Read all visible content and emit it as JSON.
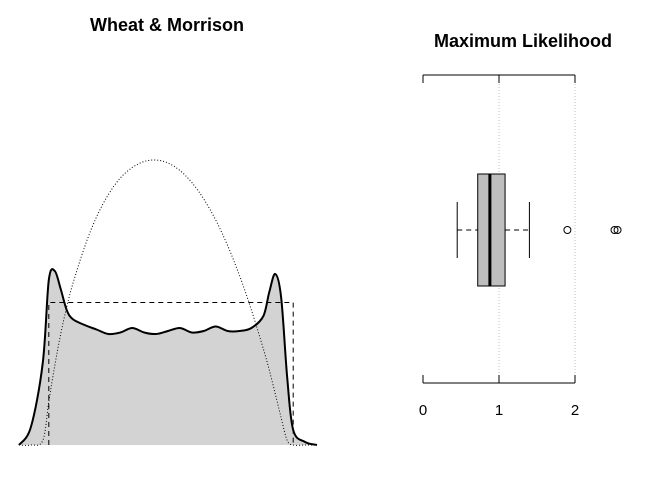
{
  "chart_data": [
    {
      "type": "area",
      "title": "Wheat & Morrison",
      "xlabel": "",
      "ylabel": "",
      "axes_shown": false,
      "fill_color": "#d3d3d3",
      "x": [
        0.0,
        0.04,
        0.08,
        0.1,
        0.12,
        0.14,
        0.16,
        0.18,
        0.22,
        0.26,
        0.3,
        0.34,
        0.38,
        0.42,
        0.46,
        0.5,
        0.54,
        0.58,
        0.62,
        0.66,
        0.7,
        0.74,
        0.78,
        0.82,
        0.84,
        0.86,
        0.88,
        0.9,
        0.92,
        0.96,
        1.0
      ],
      "series": [
        {
          "type": "area",
          "line_style": "solid",
          "values": [
            0.0,
            0.12,
            0.55,
            1.1,
            1.16,
            1.04,
            0.9,
            0.84,
            0.8,
            0.77,
            0.74,
            0.75,
            0.78,
            0.75,
            0.74,
            0.76,
            0.78,
            0.75,
            0.76,
            0.79,
            0.76,
            0.76,
            0.78,
            0.86,
            1.02,
            1.14,
            0.98,
            0.45,
            0.1,
            0.02,
            0.0
          ]
        },
        {
          "type": "line",
          "line_style": "dashed",
          "values": [
            0.0,
            0.0,
            0.0,
            0.95,
            0.95,
            0.95,
            0.95,
            0.95,
            0.95,
            0.95,
            0.95,
            0.95,
            0.95,
            0.95,
            0.95,
            0.95,
            0.95,
            0.95,
            0.95,
            0.95,
            0.95,
            0.95,
            0.95,
            0.95,
            0.95,
            0.95,
            0.95,
            0.95,
            0.95,
            0.0,
            0.0
          ]
        },
        {
          "type": "line",
          "line_style": "dotted",
          "values": [
            0.0,
            0.0,
            0.03,
            0.29,
            0.53,
            0.74,
            0.92,
            1.07,
            1.32,
            1.52,
            1.67,
            1.78,
            1.85,
            1.89,
            1.9,
            1.88,
            1.83,
            1.75,
            1.64,
            1.5,
            1.33,
            1.13,
            0.9,
            0.64,
            0.5,
            0.34,
            0.18,
            0.03,
            0.0,
            0.0,
            0.0
          ]
        }
      ]
    },
    {
      "type": "box",
      "title": "Maximum Likelihood",
      "orientation": "horizontal",
      "xlim": [
        0,
        2
      ],
      "ticks": [
        "0",
        "1",
        "2"
      ],
      "grid_lines_at": [
        1,
        2
      ],
      "box_color": "#bebebe",
      "whisker_low": 0.45,
      "q1": 0.72,
      "median": 0.88,
      "q3": 1.08,
      "whisker_high": 1.4,
      "outliers": [
        1.9,
        2.52,
        2.56
      ]
    }
  ]
}
